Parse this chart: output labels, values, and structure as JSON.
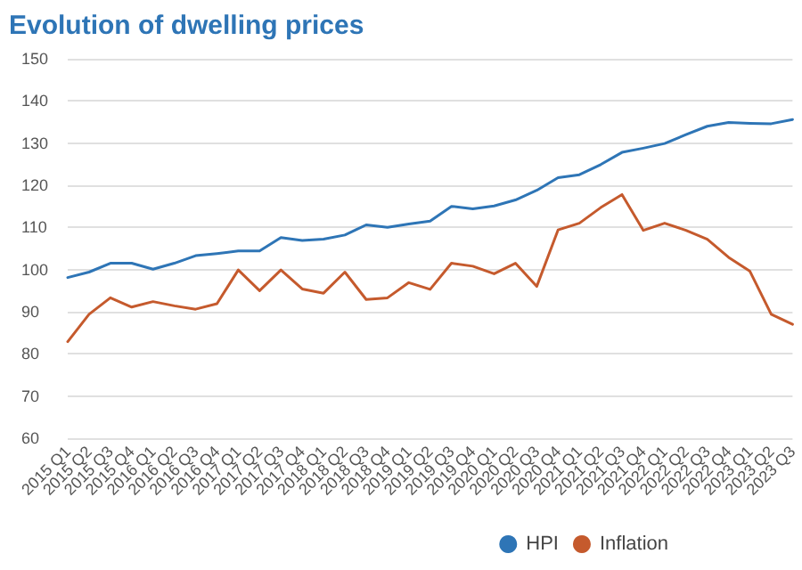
{
  "chart_data": {
    "type": "line",
    "title": "Evolution of dwelling prices",
    "categories": [
      "2015 Q1",
      "2015 Q2",
      "2015 Q3",
      "2015 Q4",
      "2016 Q1",
      "2016 Q2",
      "2016 Q3",
      "2016 Q4",
      "2017 Q1",
      "2017 Q2",
      "2017 Q3",
      "2017 Q4",
      "2018 Q1",
      "2018 Q2",
      "2018 Q3",
      "2018 Q4",
      "2019 Q1",
      "2019 Q2",
      "2019 Q3",
      "2019 Q4",
      "2020 Q1",
      "2020 Q2",
      "2020 Q3",
      "2020 Q4",
      "2021 Q1",
      "2021 Q2",
      "2021 Q3",
      "2021 Q4",
      "2022 Q1",
      "2022 Q2",
      "2022 Q3",
      "2022 Q4",
      "2023 Q1",
      "2023 Q2",
      "2023 Q3"
    ],
    "series": [
      {
        "name": "HPI",
        "color": "#2e75b6",
        "values": [
          98.1,
          99.4,
          101.5,
          101.5,
          100.1,
          101.5,
          103.3,
          103.8,
          104.4,
          104.4,
          107.6,
          106.9,
          107.2,
          108.2,
          110.6,
          110,
          110.8,
          111.5,
          115,
          114.4,
          115.1,
          116.5,
          118.8,
          121.8,
          122.5,
          124.9,
          127.8,
          128.8,
          129.9,
          132,
          134,
          134.9,
          134.7,
          134.6,
          135.6
        ]
      },
      {
        "name": "Inflation",
        "color": "#c55a2d",
        "values": [
          82.9,
          89.4,
          93.3,
          91.1,
          92.4,
          91.4,
          90.6,
          91.9,
          99.9,
          95,
          99.9,
          95.4,
          94.4,
          99.4,
          92.9,
          93.3,
          96.9,
          95.3,
          101.5,
          100.8,
          99,
          101.5,
          96,
          109.4,
          111,
          114.7,
          117.8,
          109.3,
          111,
          109.3,
          107.2,
          102.9,
          99.6,
          89.4,
          87
        ]
      }
    ],
    "ylim": [
      60,
      150
    ],
    "yticks": [
      60,
      70,
      80,
      90,
      100,
      110,
      120,
      130,
      140,
      150
    ],
    "grid": "y",
    "legend": "bottom",
    "marker": "none",
    "line_style": "solid"
  }
}
